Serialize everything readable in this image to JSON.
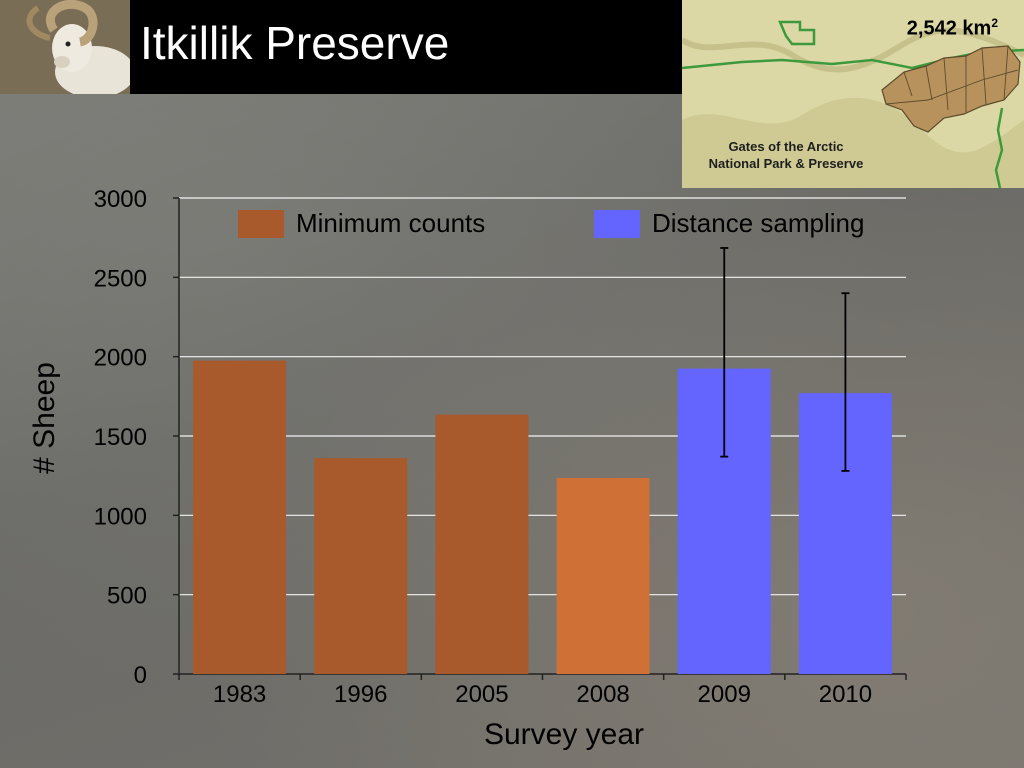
{
  "header": {
    "title": "Itkillik Preserve",
    "photo_icon": "dall-sheep-ram-photo"
  },
  "map_inset": {
    "area_value": "2,542 km",
    "area_superscript": "2",
    "park_label_line1": "Gates of the Arctic",
    "park_label_line2": "National Park & Preserve",
    "colors": {
      "terrain": "#d9d6a4",
      "boundary": "#3c9a3c",
      "preserve_units": "#b8925c"
    }
  },
  "chart_data": {
    "type": "bar",
    "categories": [
      "1983",
      "1996",
      "2005",
      "2008",
      "2009",
      "2010"
    ],
    "values": [
      1975,
      1360,
      1635,
      1235,
      1925,
      1770
    ],
    "bar_method": [
      "Minimum counts",
      "Minimum counts",
      "Minimum counts",
      "Minimum counts",
      "Distance sampling",
      "Distance sampling"
    ],
    "error_bars": [
      null,
      null,
      null,
      null,
      {
        "low": 1370,
        "high": 2685
      },
      {
        "low": 1280,
        "high": 2400
      }
    ],
    "series": [
      {
        "name": "Minimum counts",
        "color": "#a85a2c"
      },
      {
        "name": "Distance sampling",
        "color": "#6464ff"
      }
    ],
    "bar_colors": [
      "#a85a2c",
      "#a85a2c",
      "#a85a2c",
      "#cf7036",
      "#6464ff",
      "#6464ff"
    ],
    "xlabel": "Survey year",
    "ylabel": "# Sheep",
    "ylim": [
      0,
      3000
    ],
    "yticks": [
      0,
      500,
      1000,
      1500,
      2000,
      2500,
      3000
    ],
    "grid": true,
    "legend": "top"
  }
}
